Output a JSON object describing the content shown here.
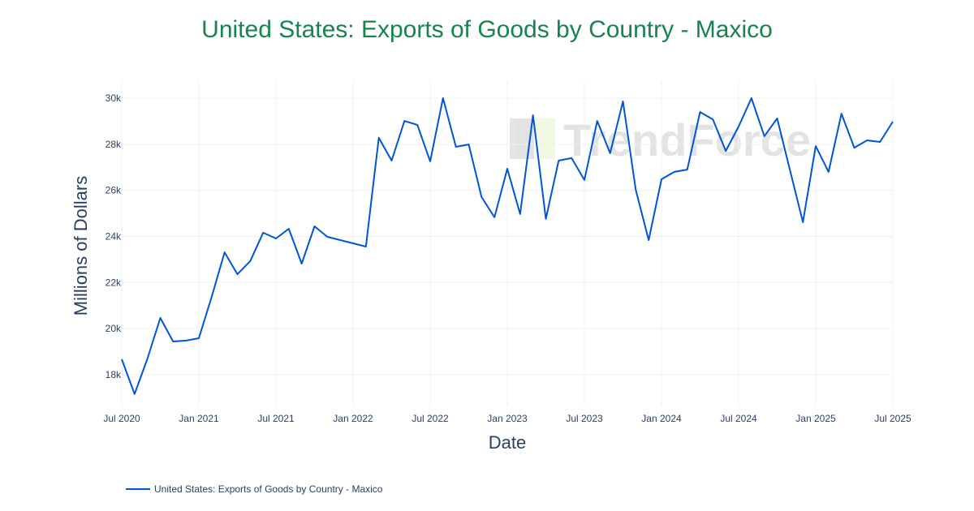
{
  "chart_data": {
    "type": "line",
    "title": "United States: Exports of Goods by Country - Maxico",
    "xlabel": "Date",
    "ylabel": "Millions of Dollars",
    "x_start": "2020-07",
    "x_ticks": [
      "Jul 2020",
      "Jan 2021",
      "Jul 2021",
      "Jan 2022",
      "Jul 2022",
      "Jan 2023",
      "Jul 2023",
      "Jan 2024",
      "Jul 2024",
      "Jan 2025",
      "Jul 2025"
    ],
    "y_ticks": [
      "18k",
      "20k",
      "22k",
      "24k",
      "26k",
      "28k",
      "30k"
    ],
    "ylim": [
      16660,
      30740
    ],
    "grid": true,
    "legend_position": "bottom-left",
    "watermark": "TrendForce",
    "series": [
      {
        "name": "United States: Exports of Goods by Country - Maxico",
        "color": "#0055d4",
        "x": [
          "2020-07",
          "2020-08",
          "2020-09",
          "2020-10",
          "2020-11",
          "2020-12",
          "2021-01",
          "2021-02",
          "2021-03",
          "2021-04",
          "2021-05",
          "2021-06",
          "2021-07",
          "2021-08",
          "2021-09",
          "2021-10",
          "2021-11",
          "2021-12",
          "2022-01",
          "2022-02",
          "2022-03",
          "2022-04",
          "2022-05",
          "2022-06",
          "2022-07",
          "2022-08",
          "2022-09",
          "2022-10",
          "2022-11",
          "2022-12",
          "2023-01",
          "2023-02",
          "2023-03",
          "2023-04",
          "2023-05",
          "2023-06",
          "2023-07",
          "2023-08",
          "2023-09",
          "2023-10",
          "2023-11",
          "2023-12",
          "2024-01",
          "2024-02",
          "2024-03",
          "2024-04",
          "2024-05",
          "2024-06",
          "2024-07",
          "2024-08",
          "2024-09",
          "2024-10",
          "2024-11",
          "2024-12",
          "2025-01",
          "2025-02",
          "2025-03",
          "2025-04",
          "2025-05",
          "2025-06",
          "2025-07"
        ],
        "values": [
          18670,
          17160,
          18700,
          20460,
          19440,
          19480,
          19580,
          21380,
          23310,
          22360,
          22930,
          24160,
          23910,
          24330,
          22820,
          24440,
          23980,
          23840,
          23700,
          23560,
          28280,
          27290,
          29010,
          28840,
          27260,
          30000,
          27890,
          27990,
          25710,
          24830,
          26940,
          24970,
          29260,
          24760,
          27290,
          27400,
          26450,
          29010,
          27610,
          29860,
          26020,
          23840,
          26480,
          26800,
          26900,
          29400,
          29080,
          27710,
          28770,
          30000,
          28350,
          29120,
          26870,
          24620,
          27920,
          26800,
          29330,
          27850,
          28170,
          28100,
          28980
        ]
      }
    ]
  }
}
